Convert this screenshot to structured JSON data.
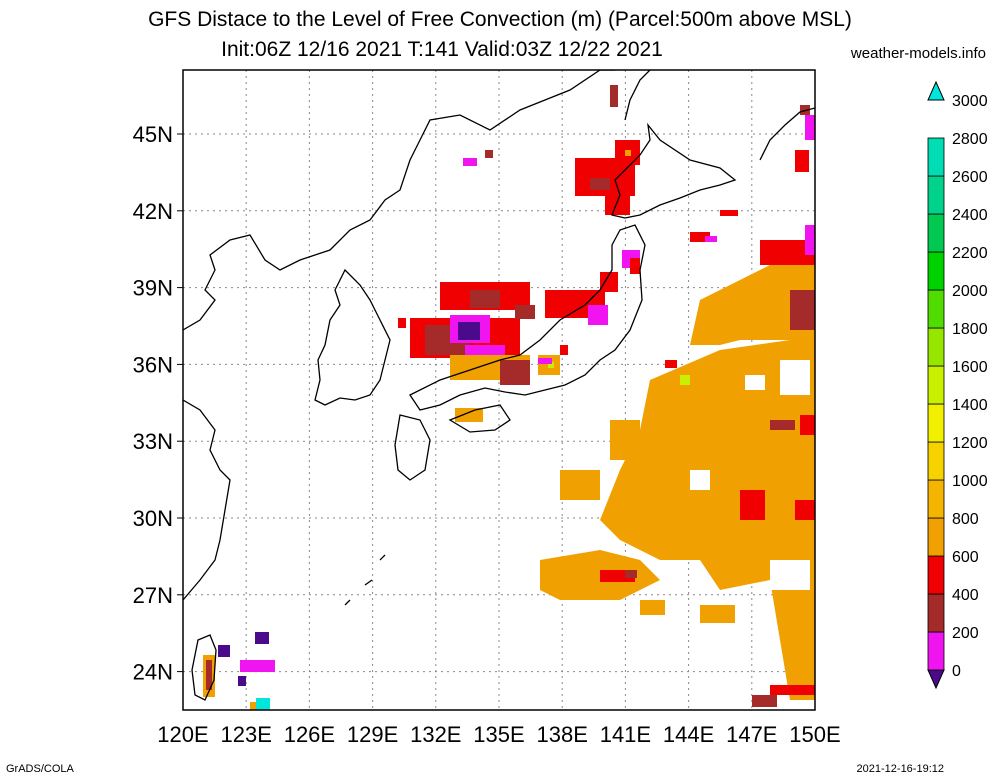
{
  "title": {
    "line1": "GFS Distace to the Level of Free Convection (m) (Parcel:500m above MSL)",
    "line2": "Init:06Z 12/16 2021 T:141 Valid:03Z 12/22 2021"
  },
  "credit": "weather-models.info",
  "footer": {
    "left": "GrADS/COLA",
    "right": "2021-12-16-19:12"
  },
  "map": {
    "lon_range": [
      120,
      150
    ],
    "lat_range": [
      22.5,
      47.5
    ],
    "x_ticks": [
      "120E",
      "123E",
      "126E",
      "129E",
      "132E",
      "135E",
      "138E",
      "141E",
      "144E",
      "147E",
      "150E"
    ],
    "x_tick_values": [
      120,
      123,
      126,
      129,
      132,
      135,
      138,
      141,
      144,
      147,
      150
    ],
    "y_ticks": [
      "24N",
      "27N",
      "30N",
      "33N",
      "36N",
      "39N",
      "42N",
      "45N"
    ],
    "y_tick_values": [
      24,
      27,
      30,
      33,
      36,
      39,
      42,
      45
    ],
    "grid": true
  },
  "colorbar": {
    "labels": [
      "0",
      "200",
      "400",
      "600",
      "800",
      "1000",
      "1200",
      "1400",
      "1600",
      "1800",
      "2000",
      "2200",
      "2400",
      "2600",
      "2800",
      "3000"
    ],
    "colors": [
      "#4b0a8c",
      "#f014f0",
      "#a52a2a",
      "#f00000",
      "#f0a000",
      "#f5b400",
      "#f5d200",
      "#f0f000",
      "#c8f000",
      "#96e600",
      "#50dc00",
      "#00d200",
      "#00c850",
      "#00d28c",
      "#00dcb4",
      "#00e6dc"
    ]
  }
}
